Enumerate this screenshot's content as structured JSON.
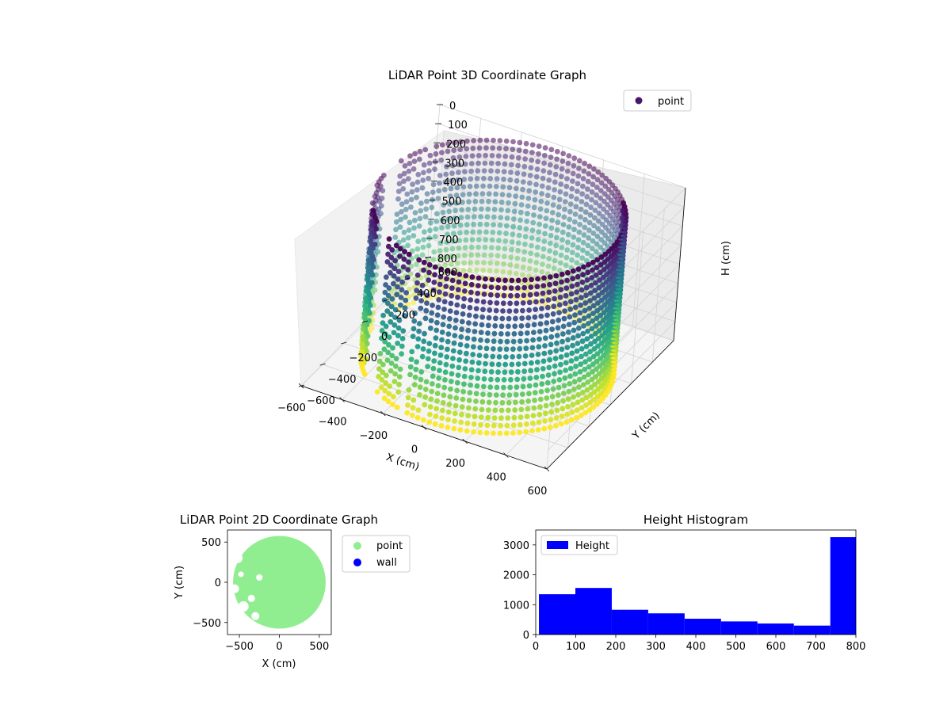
{
  "chart_data": [
    {
      "type": "scatter",
      "projection": "3d",
      "title": "LiDAR Point 3D Coordinate Graph",
      "xlabel": "X (cm)",
      "ylabel": "Y (cm)",
      "zlabel": "H (cm)",
      "xlim": [
        -600,
        600
      ],
      "ylim": [
        -600,
        600
      ],
      "zlim": [
        800,
        0
      ],
      "z_inverted": true,
      "xticks": [
        -600,
        -400,
        -200,
        0,
        200,
        400,
        600
      ],
      "yticks": [
        -600,
        -400,
        -200,
        0,
        200,
        400,
        600
      ],
      "zticks": [
        0,
        100,
        200,
        300,
        400,
        500,
        600,
        700,
        800
      ],
      "colormap": "viridis",
      "color_by": "height",
      "legend": {
        "entries": [
          {
            "label": "point",
            "color": "#46176b"
          }
        ],
        "placement": "upper-right"
      },
      "series": [
        {
          "name": "point",
          "shape": "cylindrical wall with gaps on the far-left side",
          "radius": 550,
          "height_range": [
            0,
            800
          ],
          "center": [
            0,
            0
          ]
        }
      ],
      "grid": true
    },
    {
      "type": "scatter",
      "title": "LiDAR Point 2D Coordinate Graph",
      "xlabel": "X (cm)",
      "ylabel": "Y (cm)",
      "xlim": [
        -650,
        650
      ],
      "ylim": [
        -650,
        650
      ],
      "xticks": [
        -500,
        0,
        500
      ],
      "yticks": [
        -500,
        0,
        500
      ],
      "legend": {
        "placement": "outside-right",
        "entries": [
          {
            "label": "point",
            "color": "#90ee90"
          },
          {
            "label": "wall",
            "color": "#0000ff"
          }
        ]
      },
      "series": [
        {
          "name": "point",
          "color": "#90ee90",
          "shape": "filled disc",
          "radius": 580,
          "center": [
            0,
            0
          ]
        }
      ]
    },
    {
      "type": "bar",
      "subtype": "histogram",
      "title": "Height Histogram",
      "xlim": [
        0,
        800
      ],
      "ylim": [
        0,
        3500
      ],
      "xticks": [
        0,
        100,
        200,
        300,
        400,
        500,
        600,
        700,
        800
      ],
      "yticks": [
        0,
        1000,
        2000,
        3000
      ],
      "legend": {
        "placement": "upper-left",
        "entries": [
          {
            "label": "Height",
            "color": "#0000ff"
          }
        ]
      },
      "bin_edges": [
        8,
        99,
        190,
        281,
        372,
        463,
        554,
        645,
        736,
        800
      ],
      "values": [
        1350,
        1560,
        830,
        710,
        530,
        440,
        370,
        300,
        3260
      ],
      "series": [
        {
          "name": "Height",
          "color": "#0000ff"
        }
      ]
    }
  ]
}
